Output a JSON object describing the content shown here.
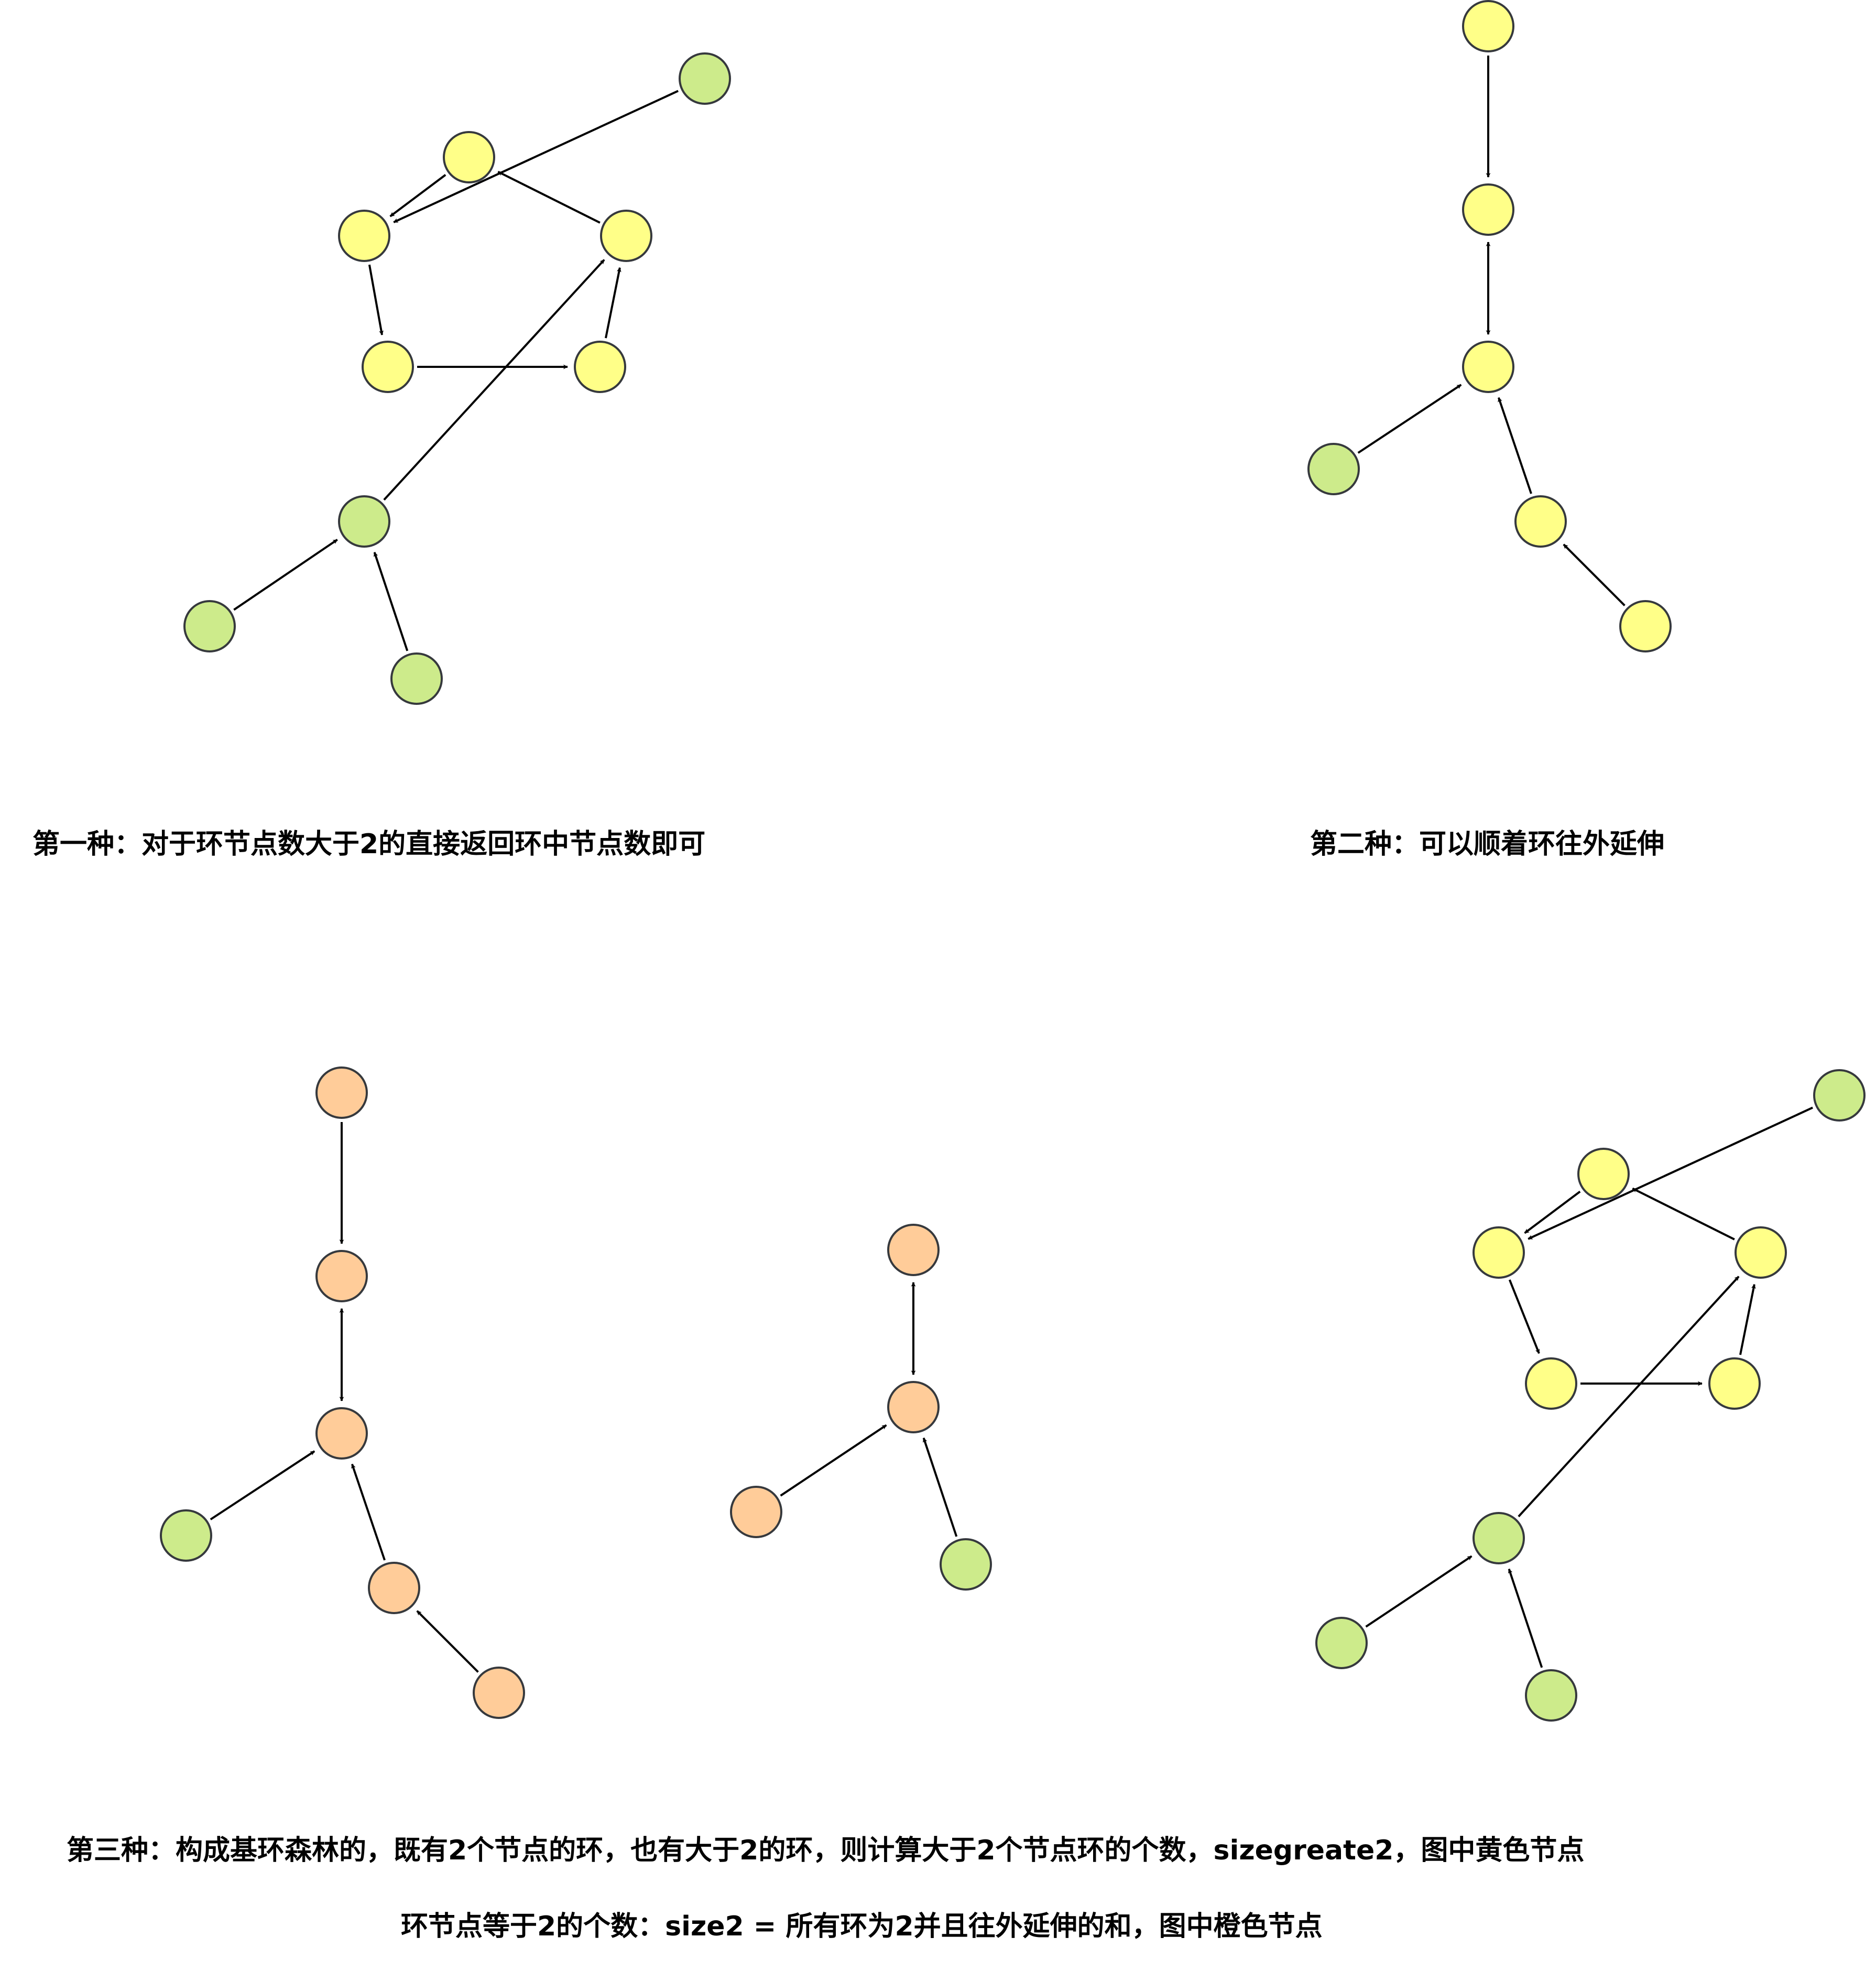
{
  "colors": {
    "yellow": "#ffff88",
    "green": "#cdeb8b",
    "orange": "#ffcc99",
    "stroke": "#36393d",
    "edge": "#000000"
  },
  "captions": {
    "first": "第一种：对于环节点数大于2的直接返回环中节点数即可",
    "second": "第二种：可以顺着环往外延伸",
    "third_line1": "第三种：构成基环森林的，既有2个节点的环，也有大于2的环，则计算大于2个节点环的个数，sizegreate2，图中黄色节点",
    "third_line2": "环节点等于2的个数：size2 = 所有环为2并且往外延伸的和，图中橙色节点"
  },
  "graphs": [
    {
      "id": "first",
      "nodes": [
        {
          "id": "a1",
          "color": "yellow"
        },
        {
          "id": "a2",
          "color": "yellow"
        },
        {
          "id": "a3",
          "color": "yellow"
        },
        {
          "id": "a4",
          "color": "yellow"
        },
        {
          "id": "a5",
          "color": "yellow"
        },
        {
          "id": "a6",
          "color": "green"
        },
        {
          "id": "a7",
          "color": "green"
        },
        {
          "id": "a8",
          "color": "green"
        },
        {
          "id": "a9",
          "color": "green"
        }
      ],
      "edges": [
        {
          "from": "a1",
          "to": "a2"
        },
        {
          "from": "a2",
          "to": "a3"
        },
        {
          "from": "a3",
          "to": "a4"
        },
        {
          "from": "a4",
          "to": "a5"
        },
        {
          "from": "a5",
          "to": "a1"
        },
        {
          "from": "a6",
          "to": "a5"
        },
        {
          "from": "a7",
          "to": "a3"
        },
        {
          "from": "a8",
          "to": "a7"
        },
        {
          "from": "a9",
          "to": "a7"
        }
      ]
    },
    {
      "id": "second",
      "nodes": [
        {
          "id": "b1",
          "color": "yellow"
        },
        {
          "id": "b2",
          "color": "yellow"
        },
        {
          "id": "b3",
          "color": "yellow"
        },
        {
          "id": "b4",
          "color": "green"
        },
        {
          "id": "b5",
          "color": "yellow"
        },
        {
          "id": "b6",
          "color": "yellow"
        }
      ],
      "edges": [
        {
          "from": "b1",
          "to": "b2"
        },
        {
          "from": "b2",
          "to": "b3",
          "bidirectional": true
        },
        {
          "from": "b4",
          "to": "b3"
        },
        {
          "from": "b5",
          "to": "b3"
        },
        {
          "from": "b6",
          "to": "b5"
        }
      ]
    },
    {
      "id": "third-left",
      "nodes": [
        {
          "id": "c1",
          "color": "orange"
        },
        {
          "id": "c2",
          "color": "orange"
        },
        {
          "id": "c3",
          "color": "orange"
        },
        {
          "id": "c4",
          "color": "green"
        },
        {
          "id": "c5",
          "color": "orange"
        },
        {
          "id": "c6",
          "color": "orange"
        }
      ],
      "edges": [
        {
          "from": "c1",
          "to": "c2"
        },
        {
          "from": "c2",
          "to": "c3",
          "bidirectional": true
        },
        {
          "from": "c4",
          "to": "c3"
        },
        {
          "from": "c5",
          "to": "c3"
        },
        {
          "from": "c6",
          "to": "c5"
        }
      ]
    },
    {
      "id": "third-middle",
      "nodes": [
        {
          "id": "d1",
          "color": "orange"
        },
        {
          "id": "d2",
          "color": "orange"
        },
        {
          "id": "d3",
          "color": "orange"
        },
        {
          "id": "d4",
          "color": "green"
        }
      ],
      "edges": [
        {
          "from": "d1",
          "to": "d2",
          "bidirectional": true
        },
        {
          "from": "d3",
          "to": "d2"
        },
        {
          "from": "d4",
          "to": "d2"
        }
      ]
    },
    {
      "id": "third-right",
      "nodes": [
        {
          "id": "e1",
          "color": "yellow"
        },
        {
          "id": "e2",
          "color": "yellow"
        },
        {
          "id": "e3",
          "color": "yellow"
        },
        {
          "id": "e4",
          "color": "yellow"
        },
        {
          "id": "e5",
          "color": "yellow"
        },
        {
          "id": "e6",
          "color": "green"
        },
        {
          "id": "e7",
          "color": "green"
        },
        {
          "id": "e8",
          "color": "green"
        },
        {
          "id": "e9",
          "color": "green"
        }
      ],
      "edges": [
        {
          "from": "e1",
          "to": "e2"
        },
        {
          "from": "e2",
          "to": "e3"
        },
        {
          "from": "e3",
          "to": "e4"
        },
        {
          "from": "e4",
          "to": "e5"
        },
        {
          "from": "e5",
          "to": "e1"
        },
        {
          "from": "e6",
          "to": "e5"
        },
        {
          "from": "e7",
          "to": "e3"
        },
        {
          "from": "e8",
          "to": "e7"
        },
        {
          "from": "e9",
          "to": "e7"
        }
      ]
    }
  ]
}
